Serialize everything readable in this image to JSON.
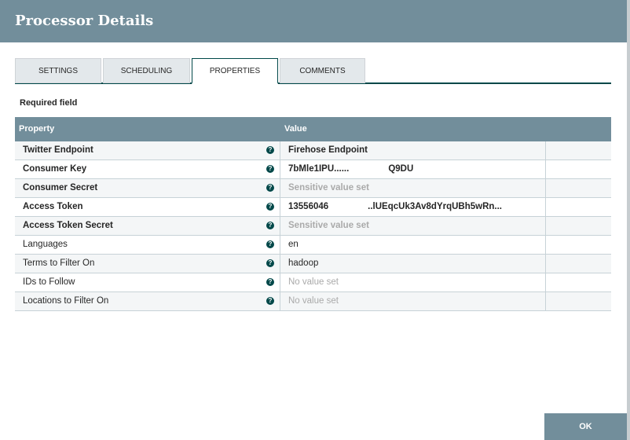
{
  "title": "Processor Details",
  "tabs": [
    {
      "label": "SETTINGS"
    },
    {
      "label": "SCHEDULING"
    },
    {
      "label": "PROPERTIES",
      "active": true
    },
    {
      "label": "COMMENTS"
    }
  ],
  "required_label": "Required field",
  "columns": {
    "property": "Property",
    "value": "Value"
  },
  "rows": [
    {
      "name": "Twitter Endpoint",
      "required": true,
      "value": "Firehose Endpoint",
      "value_suffix": "",
      "state": "set"
    },
    {
      "name": "Consumer Key",
      "required": true,
      "value": "7bMle1IPU......",
      "value_suffix": "Q9DU",
      "state": "set"
    },
    {
      "name": "Consumer Secret",
      "required": true,
      "value": "Sensitive value set",
      "value_suffix": "",
      "state": "sensitive"
    },
    {
      "name": "Access Token",
      "required": true,
      "value": "13556046",
      "value_suffix": "..lUEqcUk3Av8dYrqUBh5wRn...",
      "state": "set"
    },
    {
      "name": "Access Token Secret",
      "required": true,
      "value": "Sensitive value set",
      "value_suffix": "",
      "state": "sensitive"
    },
    {
      "name": "Languages",
      "required": false,
      "value": "en",
      "value_suffix": "",
      "state": "set"
    },
    {
      "name": "Terms to Filter On",
      "required": false,
      "value": "hadoop",
      "value_suffix": "",
      "state": "set"
    },
    {
      "name": "IDs to Follow",
      "required": false,
      "value": "No value set",
      "value_suffix": "",
      "state": "empty"
    },
    {
      "name": "Locations to Filter On",
      "required": false,
      "value": "No value set",
      "value_suffix": "",
      "state": "empty"
    }
  ],
  "help_icon": "?",
  "ok_label": "OK",
  "colors": {
    "header": "#728e9b",
    "accent": "#004849"
  }
}
